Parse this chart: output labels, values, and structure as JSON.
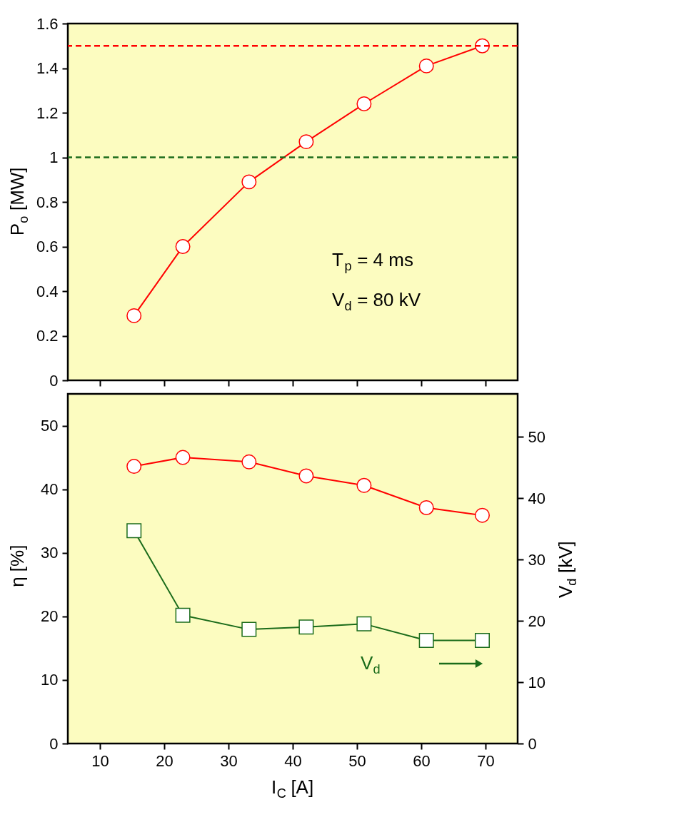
{
  "chart_data": [
    {
      "type": "line",
      "x": [
        15.3,
        22.9,
        33.2,
        42.1,
        51.1,
        60.8,
        69.5
      ],
      "ylabel": "P$_{o}$ [MW]",
      "xlim": [
        5,
        75
      ],
      "xticks": [
        10,
        20,
        30,
        40,
        50,
        60,
        70
      ],
      "ylim": [
        0,
        1.6
      ],
      "yticks": [
        0,
        0.2,
        0.4,
        0.6,
        0.8,
        1,
        1.2,
        1.4,
        1.6
      ],
      "tick_labels": "y",
      "marker": "circle",
      "line_style": "solid",
      "grid": false,
      "series": [
        {
          "color": "#ff0000",
          "values": [
            0.29,
            0.6,
            0.89,
            1.07,
            1.24,
            1.41,
            1.5
          ]
        }
      ],
      "ref_lines": [
        {
          "axis": "y",
          "value": 1.5,
          "color": "#ff0000",
          "line_style": "dashed"
        },
        {
          "axis": "y",
          "value": 1,
          "color": "#1a6b1a",
          "line_style": "dashed"
        }
      ],
      "annotations": [
        "T$_{p}$ = 4 ms",
        "V$_{d}$ = 80 kV"
      ]
    },
    {
      "type": "line",
      "x": [
        15.3,
        22.9,
        33.2,
        42.1,
        51.1,
        60.8,
        69.5
      ],
      "xlabel": "I$_{C}$ [A]",
      "ylabel": "η [%]",
      "y2label": "V$_{d}$ [kV]",
      "xlim": [
        5,
        75
      ],
      "xticks": [
        10,
        20,
        30,
        40,
        50,
        60,
        70
      ],
      "ylim": [
        0,
        55
      ],
      "yticks": [
        0,
        10,
        20,
        30,
        40,
        50
      ],
      "y2lim": [
        0,
        57
      ],
      "y2ticks": [
        0,
        10,
        20,
        30,
        40,
        50
      ],
      "line_style": "solid",
      "grid": false,
      "series": [
        {
          "color": "#ff0000",
          "marker": "circle",
          "values": [
            43.6,
            45.0,
            44.3,
            42.1,
            40.6,
            37.1,
            35.9
          ]
        },
        {
          "name": "V$_{d}$",
          "color": "#1a6b1a",
          "marker": "square",
          "axis": "y2",
          "values": [
            34.7,
            20.9,
            18.6,
            19.0,
            19.5,
            16.8,
            16.8
          ]
        }
      ]
    }
  ]
}
